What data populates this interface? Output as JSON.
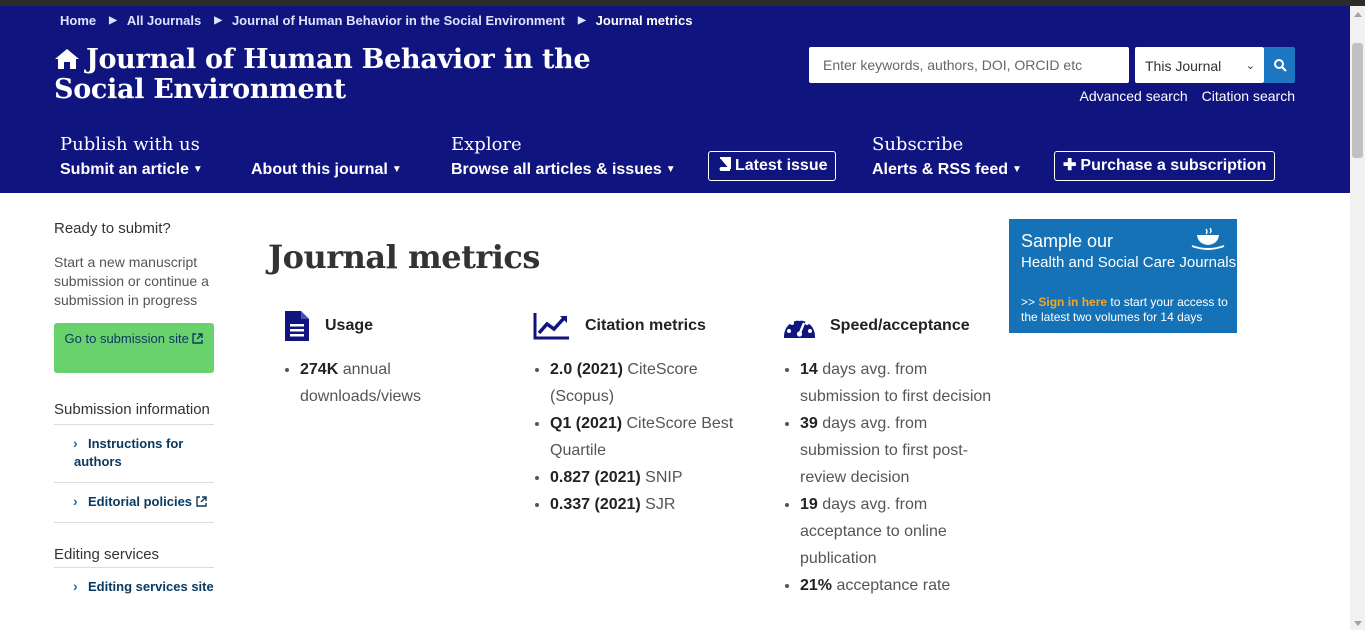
{
  "breadcrumb": {
    "items": [
      "Home",
      "All Journals",
      "Journal of Human Behavior in the Social Environment"
    ],
    "current": "Journal metrics"
  },
  "header": {
    "title": "Journal of Human Behavior in the Social Environment",
    "search": {
      "placeholder": "Enter keywords, authors, DOI, ORCID etc",
      "scope": "This Journal"
    },
    "advanced_search": "Advanced search",
    "citation_search": "Citation search"
  },
  "nav": {
    "publish": {
      "heading": "Publish with us",
      "items": [
        "Submit an article",
        "About this journal"
      ]
    },
    "explore": {
      "heading": "Explore",
      "items": [
        "Browse all articles & issues"
      ]
    },
    "latest_issue": "Latest issue",
    "subscribe": {
      "heading": "Subscribe",
      "items": [
        "Alerts & RSS feed"
      ]
    },
    "purchase": "Purchase a subscription"
  },
  "sidebar": {
    "ready_heading": "Ready to submit?",
    "ready_text": "Start a new manuscript submission or continue a submission in progress",
    "submit_button": "Go to submission site",
    "submission_heading": "Submission information",
    "links": [
      "Instructions for authors",
      "Editorial policies"
    ],
    "editing_heading": "Editing services",
    "editing_link": "Editing services site"
  },
  "page_title": "Journal metrics",
  "metrics": {
    "usage": {
      "heading": "Usage",
      "items": [
        {
          "value": "274K",
          "text": " annual downloads/views"
        }
      ]
    },
    "citation": {
      "heading": "Citation metrics",
      "items": [
        {
          "value": "2.0 (2021)",
          "text": " CiteScore (Scopus)"
        },
        {
          "value": "Q1 (2021)",
          "text": " CiteScore Best Quartile"
        },
        {
          "value": "0.827 (2021)",
          "text": " SNIP"
        },
        {
          "value": "0.337 (2021)",
          "text": " SJR"
        }
      ]
    },
    "speed": {
      "heading": "Speed/acceptance",
      "items": [
        {
          "value": "14",
          "text": " days avg. from submission to first decision"
        },
        {
          "value": "39",
          "text": " days avg. from submission to first post-review decision"
        },
        {
          "value": "19",
          "text": " days avg. from acceptance to online publication"
        },
        {
          "value": "21%",
          "text": " acceptance rate"
        }
      ]
    }
  },
  "ad": {
    "line1": "Sample our",
    "line2": "Health and Social Care Journals",
    "prefix": ">>",
    "sign_in": "Sign in here",
    "rest": " to start your access to the latest two volumes for 14 days"
  },
  "colors": {
    "header_bg": "#10147e",
    "submit_btn": "#6ad26c",
    "ad_bg": "#1572b6",
    "search_btn": "#1d76c2"
  }
}
